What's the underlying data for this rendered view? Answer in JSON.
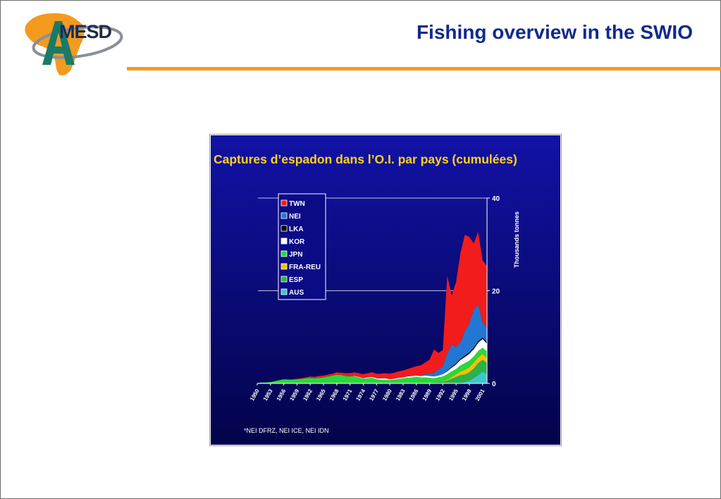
{
  "header": {
    "logo_text": "MESD",
    "logo_letter": "A",
    "slide_title": "Fishing overview in the SWIO",
    "accent_color": "#f59a1b",
    "title_color": "#102a8c"
  },
  "chart_data": {
    "type": "area",
    "stacked": true,
    "title": "Captures d’espadon dans l’O.I. par pays (cumulées)",
    "ylabel": "Thousands tonnes",
    "ylim": [
      0,
      40
    ],
    "yticks": [
      0,
      20,
      40
    ],
    "grid": true,
    "legend_position": "top-left",
    "footnote": "*NEI DFRZ, NEI ICE, NEI IDN",
    "x": [
      1950,
      1951,
      1952,
      1953,
      1954,
      1955,
      1956,
      1957,
      1958,
      1959,
      1960,
      1961,
      1962,
      1963,
      1964,
      1965,
      1966,
      1967,
      1968,
      1969,
      1970,
      1971,
      1972,
      1973,
      1974,
      1975,
      1976,
      1977,
      1978,
      1979,
      1980,
      1981,
      1982,
      1983,
      1984,
      1985,
      1986,
      1987,
      1988,
      1989,
      1990,
      1991,
      1992,
      1993,
      1994,
      1995,
      1996,
      1997,
      1998,
      1999,
      2000,
      2001,
      2002
    ],
    "xtick_labels": [
      "1950",
      "1953",
      "1956",
      "1959",
      "1962",
      "1965",
      "1968",
      "1971",
      "1974",
      "1977",
      "1980",
      "1983",
      "1986",
      "1989",
      "1992",
      "1995",
      "1998",
      "2001"
    ],
    "series": [
      {
        "name": "AUS",
        "color": "#3ec6cc",
        "values": [
          0,
          0,
          0,
          0,
          0,
          0,
          0,
          0,
          0,
          0,
          0,
          0,
          0,
          0,
          0,
          0,
          0,
          0,
          0,
          0,
          0,
          0,
          0,
          0,
          0,
          0,
          0,
          0,
          0,
          0,
          0,
          0,
          0,
          0,
          0,
          0,
          0,
          0,
          0,
          0,
          0,
          0,
          0,
          0,
          0,
          0,
          0.1,
          0.3,
          0.6,
          1.2,
          1.8,
          2.6,
          2
        ]
      },
      {
        "name": "ESP",
        "color": "#2ab24a",
        "values": [
          0,
          0,
          0,
          0,
          0,
          0,
          0,
          0,
          0,
          0,
          0,
          0,
          0,
          0,
          0,
          0,
          0,
          0,
          0,
          0,
          0,
          0,
          0,
          0,
          0,
          0,
          0,
          0,
          0,
          0,
          0,
          0,
          0,
          0,
          0,
          0,
          0,
          0,
          0,
          0,
          0.1,
          0.2,
          0.3,
          0.6,
          1,
          1.4,
          1.7,
          1.6,
          1.8,
          2,
          2.6,
          2.5,
          2.4
        ]
      },
      {
        "name": "FRA-REU",
        "color": "#f2c200",
        "values": [
          0,
          0,
          0,
          0,
          0,
          0,
          0,
          0,
          0,
          0,
          0,
          0,
          0,
          0,
          0,
          0,
          0,
          0,
          0,
          0,
          0,
          0,
          0,
          0,
          0,
          0,
          0,
          0,
          0,
          0,
          0,
          0,
          0,
          0,
          0,
          0,
          0,
          0,
          0,
          0,
          0,
          0,
          0.1,
          0.2,
          0.4,
          0.6,
          0.8,
          1,
          1.1,
          1.3,
          1.2,
          1.3,
          1.1
        ]
      },
      {
        "name": "JPN",
        "color": "#29d83a",
        "values": [
          0.1,
          0.2,
          0.2,
          0.3,
          0.5,
          0.7,
          0.9,
          0.8,
          0.8,
          0.9,
          1,
          1.1,
          1.2,
          1.1,
          1.2,
          1.3,
          1.5,
          1.7,
          1.9,
          1.8,
          1.6,
          1.5,
          1.5,
          1.3,
          1,
          1.1,
          1.2,
          0.9,
          0.8,
          0.8,
          0.7,
          0.8,
          1,
          1.1,
          1.2,
          1.3,
          1.4,
          1.3,
          1.3,
          1.2,
          1,
          1.1,
          1.1,
          1.2,
          1.2,
          1.1,
          1.3,
          1.5,
          1.4,
          1.3,
          1.4,
          1.3,
          1.4
        ]
      },
      {
        "name": "KOR",
        "color": "#ffffff",
        "values": [
          0,
          0,
          0,
          0,
          0,
          0,
          0,
          0,
          0,
          0,
          0,
          0,
          0,
          0,
          0,
          0,
          0,
          0,
          0,
          0,
          0,
          0,
          0.1,
          0.1,
          0.1,
          0.2,
          0.2,
          0.2,
          0.3,
          0.3,
          0.2,
          0.2,
          0.2,
          0.2,
          0.3,
          0.3,
          0.3,
          0.3,
          0.4,
          0.4,
          0.4,
          0.4,
          0.5,
          0.6,
          0.8,
          1,
          1.2,
          1.3,
          1.5,
          1.6,
          1.8,
          1.9,
          1.7
        ]
      },
      {
        "name": "LKA",
        "color": "#000000",
        "values": [
          0,
          0,
          0,
          0,
          0,
          0,
          0,
          0,
          0,
          0,
          0,
          0,
          0,
          0,
          0,
          0,
          0,
          0,
          0,
          0,
          0,
          0,
          0,
          0,
          0,
          0,
          0,
          0,
          0,
          0,
          0,
          0,
          0,
          0,
          0,
          0,
          0,
          0,
          0,
          0,
          0,
          0,
          0,
          0.1,
          0.2,
          0.2,
          0.2,
          0.3,
          0.3,
          0.3,
          0.3,
          0.3,
          0.3
        ]
      },
      {
        "name": "NEI",
        "color": "#2277d3",
        "values": [
          0,
          0,
          0,
          0,
          0,
          0,
          0,
          0,
          0,
          0,
          0,
          0,
          0,
          0,
          0,
          0,
          0,
          0,
          0,
          0,
          0,
          0,
          0,
          0,
          0,
          0,
          0,
          0,
          0,
          0,
          0,
          0,
          0,
          0,
          0,
          0,
          0,
          0.1,
          0.3,
          0.5,
          0.8,
          1.3,
          1.7,
          3.8,
          4.8,
          3.5,
          3.6,
          5.3,
          6.3,
          8.2,
          7.9,
          3.3,
          3
        ]
      },
      {
        "name": "TWN",
        "color": "#f21c1c",
        "values": [
          0,
          0,
          0,
          0,
          0,
          0,
          0,
          0.1,
          0.1,
          0.1,
          0.1,
          0.2,
          0.3,
          0.3,
          0.4,
          0.4,
          0.4,
          0.4,
          0.5,
          0.5,
          0.6,
          0.7,
          0.8,
          0.8,
          0.9,
          0.9,
          1,
          1,
          1,
          1.1,
          1.2,
          1.3,
          1.4,
          1.5,
          1.6,
          1.8,
          2,
          2.2,
          2.5,
          3,
          5,
          3.6,
          3.5,
          16.7,
          10.6,
          14.1,
          19.3,
          20.8,
          18.6,
          14.3,
          15.7,
          13.3,
          13.4
        ]
      }
    ]
  }
}
